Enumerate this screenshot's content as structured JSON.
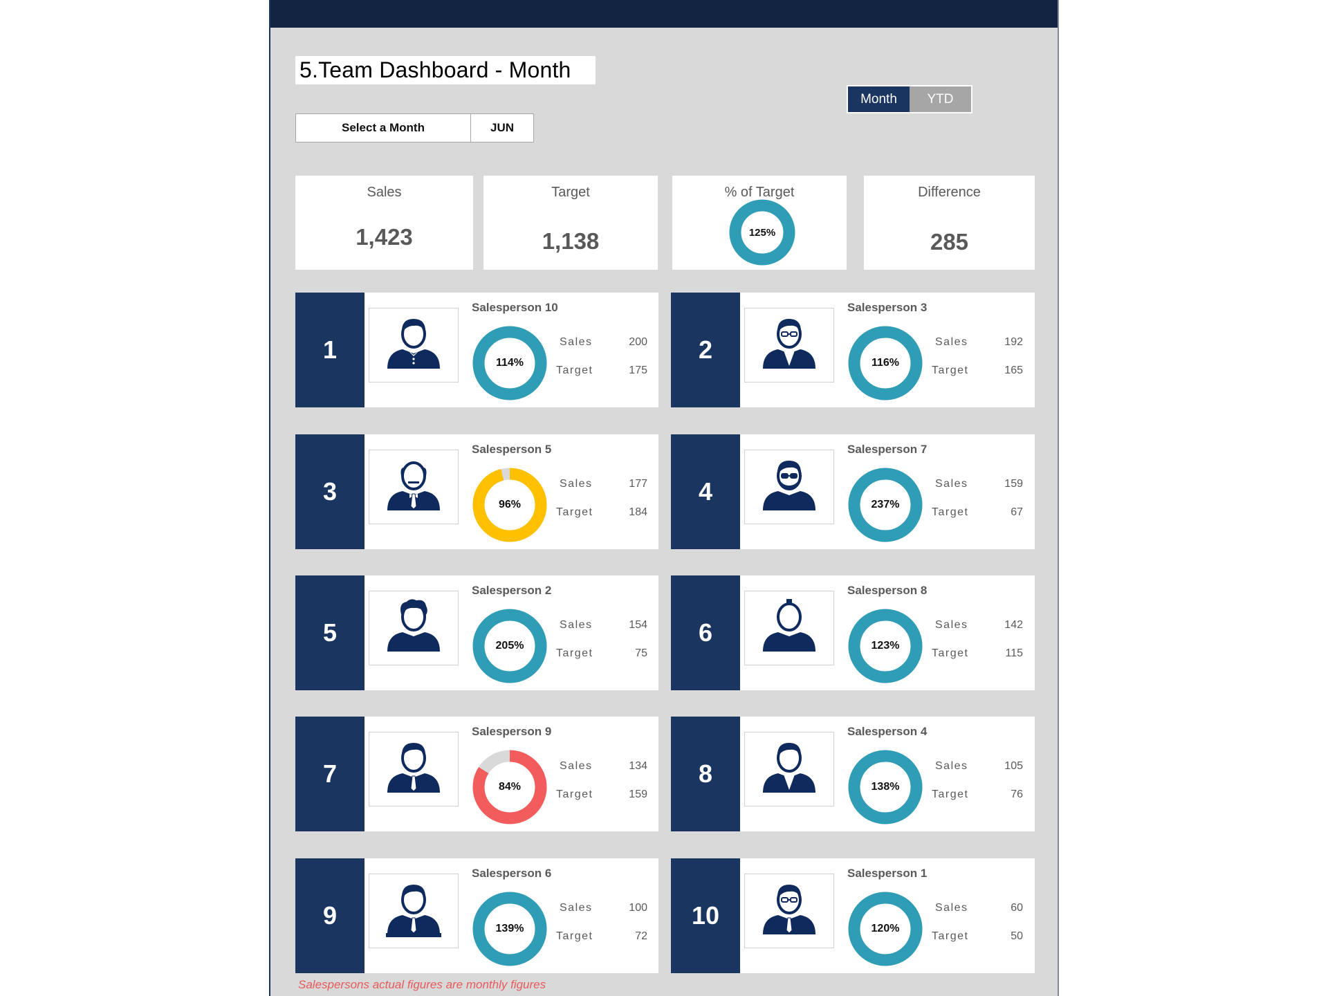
{
  "header": {
    "title": "5.Team Dashboard - Month"
  },
  "month_selector": {
    "label": "Select a Month",
    "value": "JUN"
  },
  "view_toggle": {
    "options": [
      {
        "label": "Month",
        "active": true
      },
      {
        "label": "YTD",
        "active": false
      }
    ]
  },
  "kpis": {
    "sales": {
      "label": "Sales",
      "value": "1,423"
    },
    "target": {
      "label": "Target",
      "value": "1,138"
    },
    "pct_target": {
      "label": "% of Target",
      "value": "125%",
      "percent": 125
    },
    "difference": {
      "label": "Difference",
      "value": "285"
    }
  },
  "colors": {
    "navy": "#1a3560",
    "header_dark": "#12243f",
    "teal": "#2e9db5",
    "amber": "#ffc000",
    "red": "#f25c5c",
    "track_gray": "#d9d9d9",
    "footnote_red": "#e85a5a"
  },
  "labels": {
    "sales": "Sales",
    "target": "Target"
  },
  "salespeople": [
    {
      "rank": "1",
      "name": "Salesperson 10",
      "pct": "114%",
      "percent": 114,
      "sales": "200",
      "target": "175",
      "status": "above",
      "avatar": "person-collared-shirt-icon"
    },
    {
      "rank": "2",
      "name": "Salesperson 3",
      "pct": "116%",
      "percent": 116,
      "sales": "192",
      "target": "165",
      "status": "above",
      "avatar": "person-glasses-suit-icon"
    },
    {
      "rank": "3",
      "name": "Salesperson 5",
      "pct": "96%",
      "percent": 96,
      "sales": "177",
      "target": "184",
      "status": "near",
      "avatar": "person-bald-bowtie-icon"
    },
    {
      "rank": "4",
      "name": "Salesperson 7",
      "pct": "237%",
      "percent": 237,
      "sales": "159",
      "target": "67",
      "status": "above",
      "avatar": "person-beard-sunglasses-icon"
    },
    {
      "rank": "5",
      "name": "Salesperson 2",
      "pct": "205%",
      "percent": 205,
      "sales": "154",
      "target": "75",
      "status": "above",
      "avatar": "person-curly-hair-icon"
    },
    {
      "rank": "6",
      "name": "Salesperson 8",
      "pct": "123%",
      "percent": 123,
      "sales": "142",
      "target": "115",
      "status": "above",
      "avatar": "person-mohawk-icon"
    },
    {
      "rank": "7",
      "name": "Salesperson 9",
      "pct": "84%",
      "percent": 84,
      "sales": "134",
      "target": "159",
      "status": "below",
      "avatar": "person-tie-icon"
    },
    {
      "rank": "8",
      "name": "Salesperson 4",
      "pct": "138%",
      "percent": 138,
      "sales": "105",
      "target": "76",
      "status": "above",
      "avatar": "person-suit-icon"
    },
    {
      "rank": "9",
      "name": "Salesperson 6",
      "pct": "139%",
      "percent": 139,
      "sales": "100",
      "target": "72",
      "status": "above",
      "avatar": "person-desk-tie-icon"
    },
    {
      "rank": "10",
      "name": "Salesperson 1",
      "pct": "120%",
      "percent": 120,
      "sales": "60",
      "target": "50",
      "status": "above",
      "avatar": "person-glasses-tie-icon"
    }
  ],
  "footnote": "Salespersons actual figures are monthly figures"
}
